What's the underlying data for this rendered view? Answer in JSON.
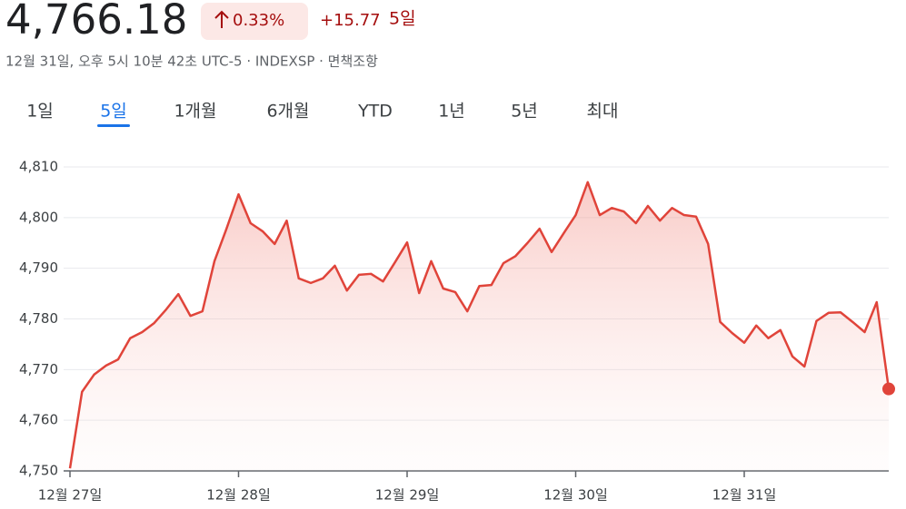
{
  "header": {
    "price": "4,766.18",
    "change_pct": "0.33%",
    "change_abs": "+15.77",
    "period": "5일",
    "subtitle": "12월 31일, 오후 5시 10분 42초 UTC-5 · INDEXSP · 면책조항"
  },
  "tabs": [
    "1일",
    "5일",
    "1개월",
    "6개월",
    "YTD",
    "1년",
    "5년",
    "최대"
  ],
  "selected_tab": 1,
  "chart_data": {
    "type": "line",
    "color": "#e0443a",
    "grid": true,
    "xlim": [
      0,
      68
    ],
    "xticks": [
      {
        "value": 0,
        "label": "12월 27일"
      },
      {
        "value": 14,
        "label": "12월 28일"
      },
      {
        "value": 28,
        "label": "12월 29일"
      },
      {
        "value": 42,
        "label": "12월 30일"
      },
      {
        "value": 56,
        "label": "12월 31일"
      }
    ],
    "ylim": [
      4750,
      4810
    ],
    "yticks": [
      {
        "value": 4750,
        "label": "4,750"
      },
      {
        "value": 4760,
        "label": "4,760"
      },
      {
        "value": 4770,
        "label": "4,770"
      },
      {
        "value": 4780,
        "label": "4,780"
      },
      {
        "value": 4790,
        "label": "4,790"
      },
      {
        "value": 4800,
        "label": "4,800"
      },
      {
        "value": 4810,
        "label": "4,810"
      }
    ],
    "values": [
      4750.5,
      4765.6,
      4769.0,
      4770.8,
      4772.0,
      4776.2,
      4777.4,
      4779.2,
      4781.9,
      4784.9,
      4780.6,
      4781.5,
      4791.4,
      4797.8,
      4804.6,
      4798.9,
      4797.3,
      4794.8,
      4799.4,
      4788.0,
      4787.1,
      4788.0,
      4790.5,
      4785.6,
      4788.7,
      4788.9,
      4787.4,
      4791.2,
      4795.1,
      4785.1,
      4791.4,
      4786.0,
      4785.3,
      4781.5,
      4786.5,
      4786.7,
      4791.0,
      4792.4,
      4795.0,
      4797.8,
      4793.2,
      4796.9,
      4800.5,
      4807.0,
      4800.5,
      4801.9,
      4801.2,
      4798.9,
      4802.3,
      4799.4,
      4801.9,
      4800.5,
      4800.2,
      4794.8,
      4779.4,
      4777.2,
      4775.3,
      4778.7,
      4776.2,
      4777.8,
      4772.6,
      4770.6,
      4779.6,
      4781.2,
      4781.3,
      4779.4,
      4777.4,
      4783.3,
      4766.18
    ]
  }
}
